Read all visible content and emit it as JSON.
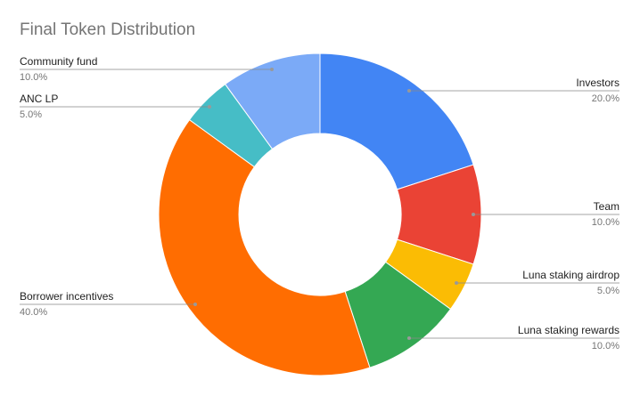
{
  "chart_data": {
    "type": "donut",
    "title": "Final Token Distribution",
    "categories": [
      "Investors",
      "Team",
      "Luna staking airdrop",
      "Luna staking rewards",
      "Borrower incentives",
      "ANC LP",
      "Community fund"
    ],
    "values": [
      20,
      10,
      5,
      10,
      40,
      5,
      10
    ],
    "value_labels": [
      "20.0%",
      "10.0%",
      "5.0%",
      "10.0%",
      "40.0%",
      "5.0%",
      "10.0%"
    ],
    "colors": [
      "#4285f4",
      "#ea4335",
      "#fbbc04",
      "#34a853",
      "#ff6d01",
      "#46bdc6",
      "#7baaf7"
    ]
  }
}
